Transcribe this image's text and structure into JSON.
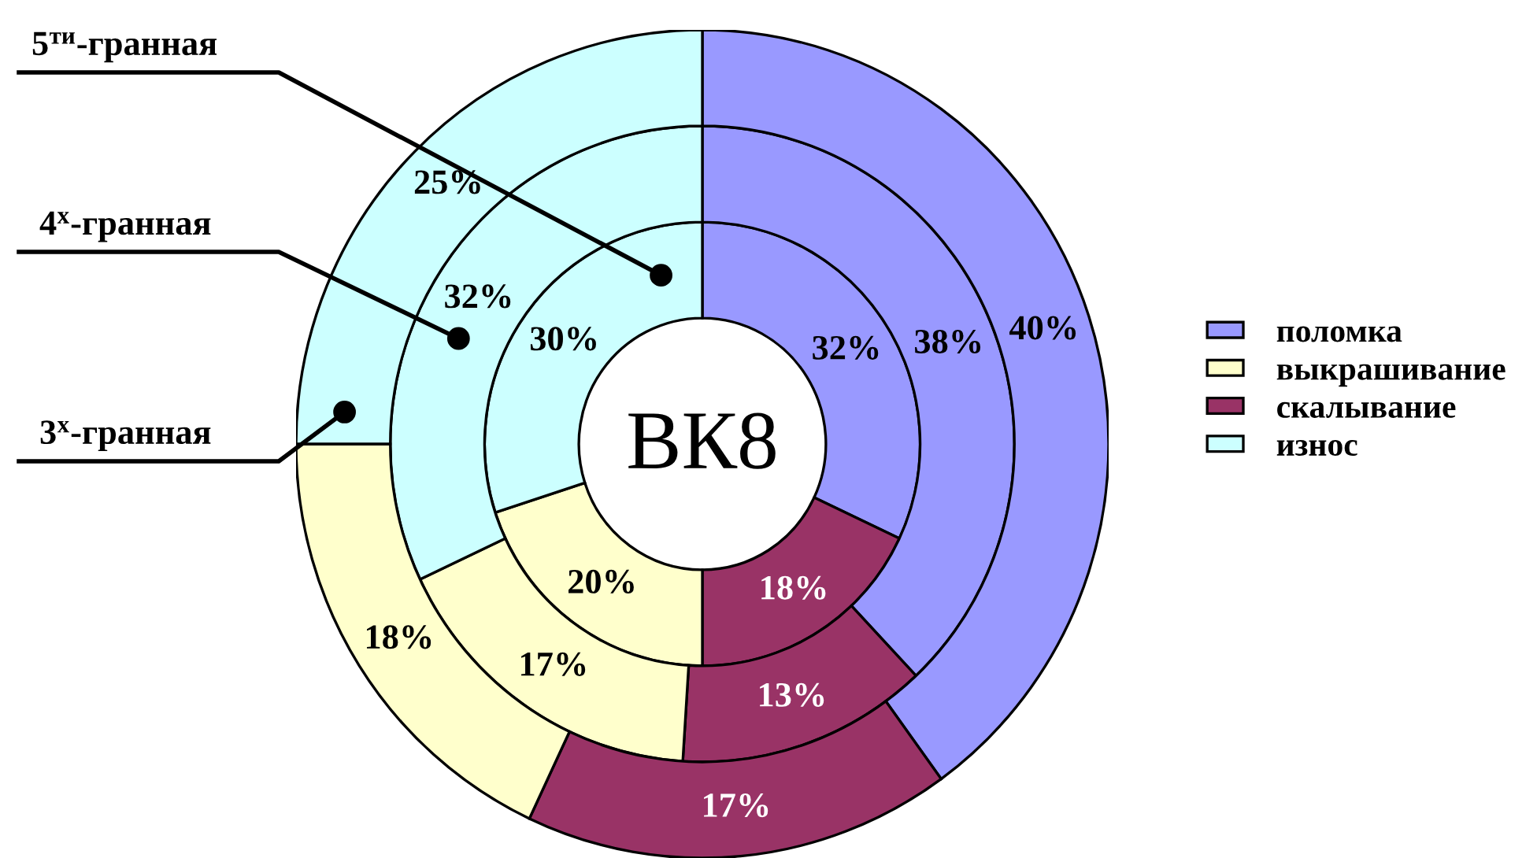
{
  "chart_data": {
    "type": "donut",
    "title": "ВК8",
    "categories": [
      "поломка",
      "выкрашивание",
      "скалывание",
      "износ"
    ],
    "colors": [
      "#9999ff",
      "#ffffcc",
      "#993366",
      "#ccffff"
    ],
    "series": [
      {
        "name": "5$^{ти}$-гранная",
        "values": [
          32,
          20,
          18,
          30
        ],
        "value_labels": [
          "32%",
          "20%",
          "18%",
          "30%"
        ]
      },
      {
        "name": "4$^{х}$-гранная",
        "values": [
          38,
          17,
          13,
          32
        ],
        "value_labels": [
          "38%",
          "17%",
          "13%",
          "32%"
        ]
      },
      {
        "name": "3$^{х}$-гранная",
        "values": [
          40,
          18,
          17,
          25
        ],
        "value_labels": [
          "40%",
          "18%",
          "17%",
          "25%"
        ]
      }
    ],
    "legend": "right"
  }
}
